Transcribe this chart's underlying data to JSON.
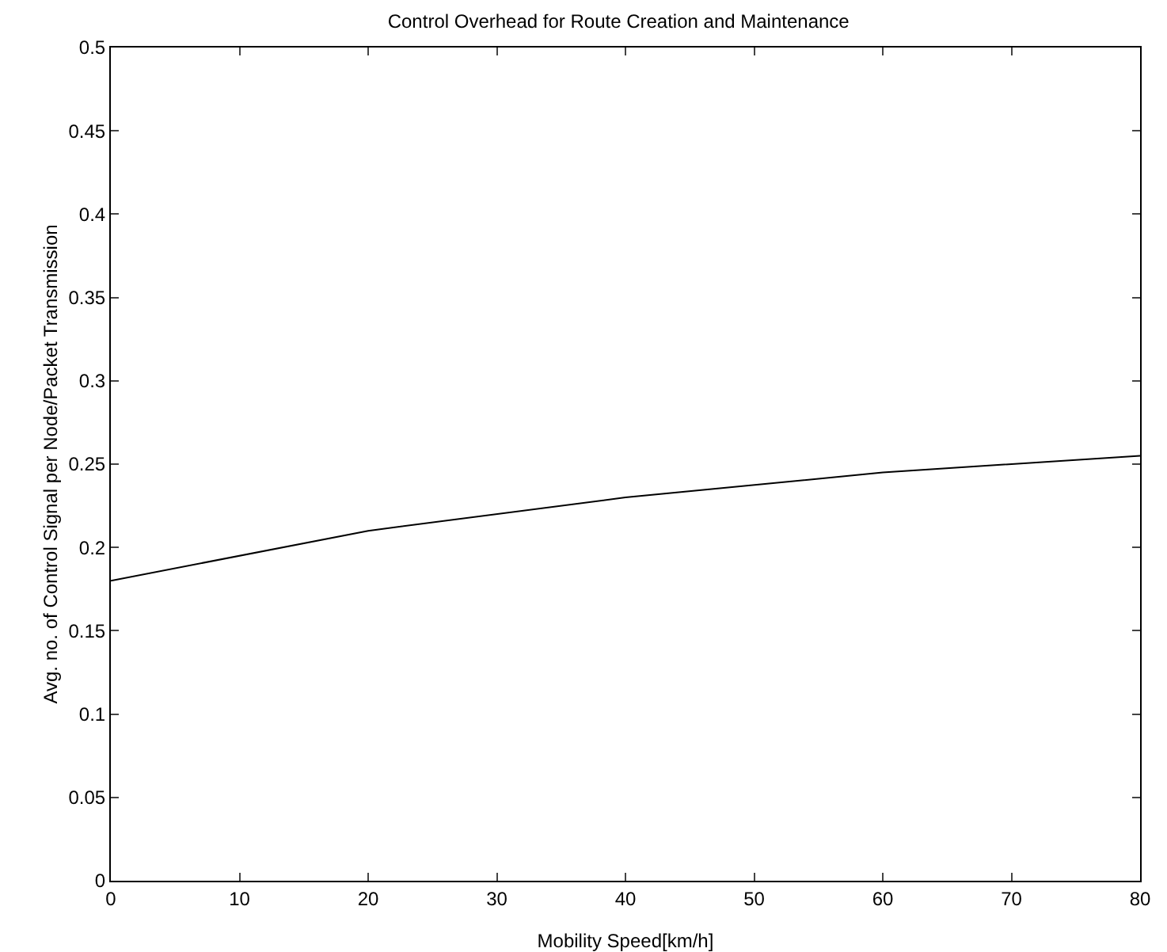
{
  "chart_data": {
    "type": "line",
    "title": "Control Overhead for Route Creation and Maintenance",
    "xlabel": "Mobility Speed[km/h]",
    "ylabel": "Avg. no. of Control Signal per Node/Packet Transmission",
    "x": [
      0,
      20,
      40,
      60,
      80
    ],
    "series": [
      {
        "color": "#000000",
        "values": [
          0.18,
          0.21,
          0.23,
          0.245,
          0.255
        ]
      }
    ],
    "xlim": [
      0,
      80
    ],
    "xticks": [
      0,
      10,
      20,
      30,
      40,
      50,
      60,
      70,
      80
    ],
    "ylim": [
      0,
      0.5
    ],
    "yticks": [
      0,
      0.05,
      0.1,
      0.15,
      0.2,
      0.25,
      0.3,
      0.35,
      0.4,
      0.45,
      0.5
    ],
    "grid": false,
    "marker": "none",
    "line_style": "solid"
  }
}
